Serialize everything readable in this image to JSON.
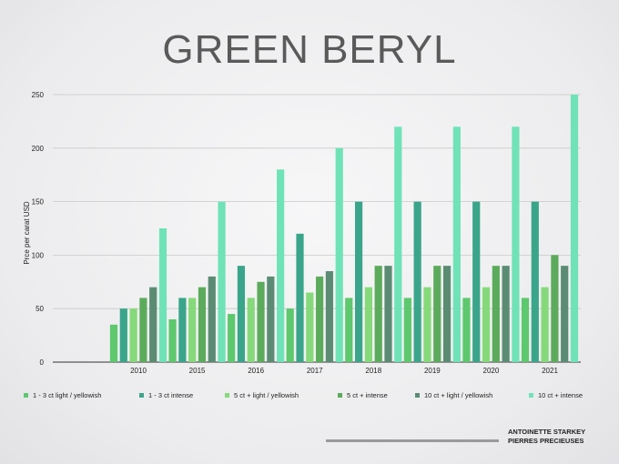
{
  "page": {
    "title": "GREEN BERYL",
    "credit_line1": "ANTOINETTE STARKEY",
    "credit_line2": "PIERRES PRECIEUSES"
  },
  "chart_data": {
    "type": "bar",
    "title": "GREEN BERYL",
    "xlabel": "",
    "ylabel": "Prce per carat USD",
    "ylim": [
      0,
      250
    ],
    "yticks": [
      0,
      50,
      100,
      150,
      200,
      250
    ],
    "grid": true,
    "legend_position": "bottom",
    "categories": [
      "2010",
      "2015",
      "2016",
      "2017",
      "2018",
      "2019",
      "2020",
      "2021"
    ],
    "series": [
      {
        "name": "1 - 3 ct light / yellowish",
        "color": "#5dc86e",
        "values": [
          35,
          40,
          45,
          50,
          60,
          60,
          60,
          60
        ]
      },
      {
        "name": "1 - 3 ct intense",
        "color": "#3aa58a",
        "values": [
          50,
          60,
          90,
          120,
          150,
          150,
          150,
          150
        ]
      },
      {
        "name": "5 ct +  light / yellowish",
        "color": "#86d97a",
        "values": [
          50,
          60,
          60,
          65,
          70,
          70,
          70,
          70
        ]
      },
      {
        "name": "5 ct + intense",
        "color": "#5cab5c",
        "values": [
          60,
          70,
          75,
          80,
          90,
          90,
          90,
          100
        ]
      },
      {
        "name": "10 ct +  light / yellowish",
        "color": "#5b8c73",
        "values": [
          70,
          80,
          80,
          85,
          90,
          90,
          90,
          90
        ]
      },
      {
        "name": "10 ct +  intense",
        "color": "#6fe3b7",
        "values": [
          125,
          150,
          180,
          200,
          220,
          220,
          220,
          250
        ]
      }
    ]
  }
}
